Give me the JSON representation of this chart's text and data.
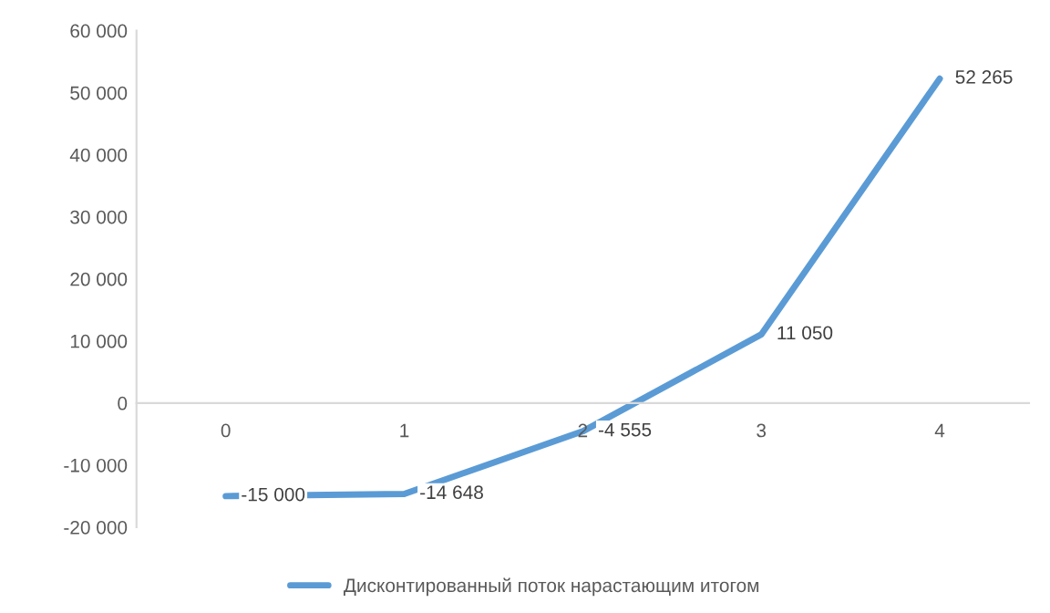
{
  "chart_data": {
    "type": "line",
    "categories": [
      "0",
      "1",
      "2",
      "3",
      "4"
    ],
    "series": [
      {
        "name": "Дисконтированный поток нарастающим итогом",
        "color": "#5b9bd5",
        "values": [
          -15000,
          -14648,
          -4555,
          11050,
          52265
        ],
        "value_labels": [
          "-15 000",
          "-14 648",
          "-4 555",
          "11 050",
          "52 265"
        ]
      }
    ],
    "ylim": [
      -20000,
      60000
    ],
    "yticks": [
      {
        "value": -20000,
        "label": "-20 000"
      },
      {
        "value": -10000,
        "label": "-10 000"
      },
      {
        "value": 0,
        "label": "0"
      },
      {
        "value": 10000,
        "label": "10 000"
      },
      {
        "value": 20000,
        "label": "20 000"
      },
      {
        "value": 30000,
        "label": "30 000"
      },
      {
        "value": 40000,
        "label": "40 000"
      },
      {
        "value": 50000,
        "label": "50 000"
      },
      {
        "value": 60000,
        "label": "60 000"
      }
    ],
    "grid": false,
    "legend": "bottom",
    "marker": "none",
    "line_style": "solid"
  }
}
